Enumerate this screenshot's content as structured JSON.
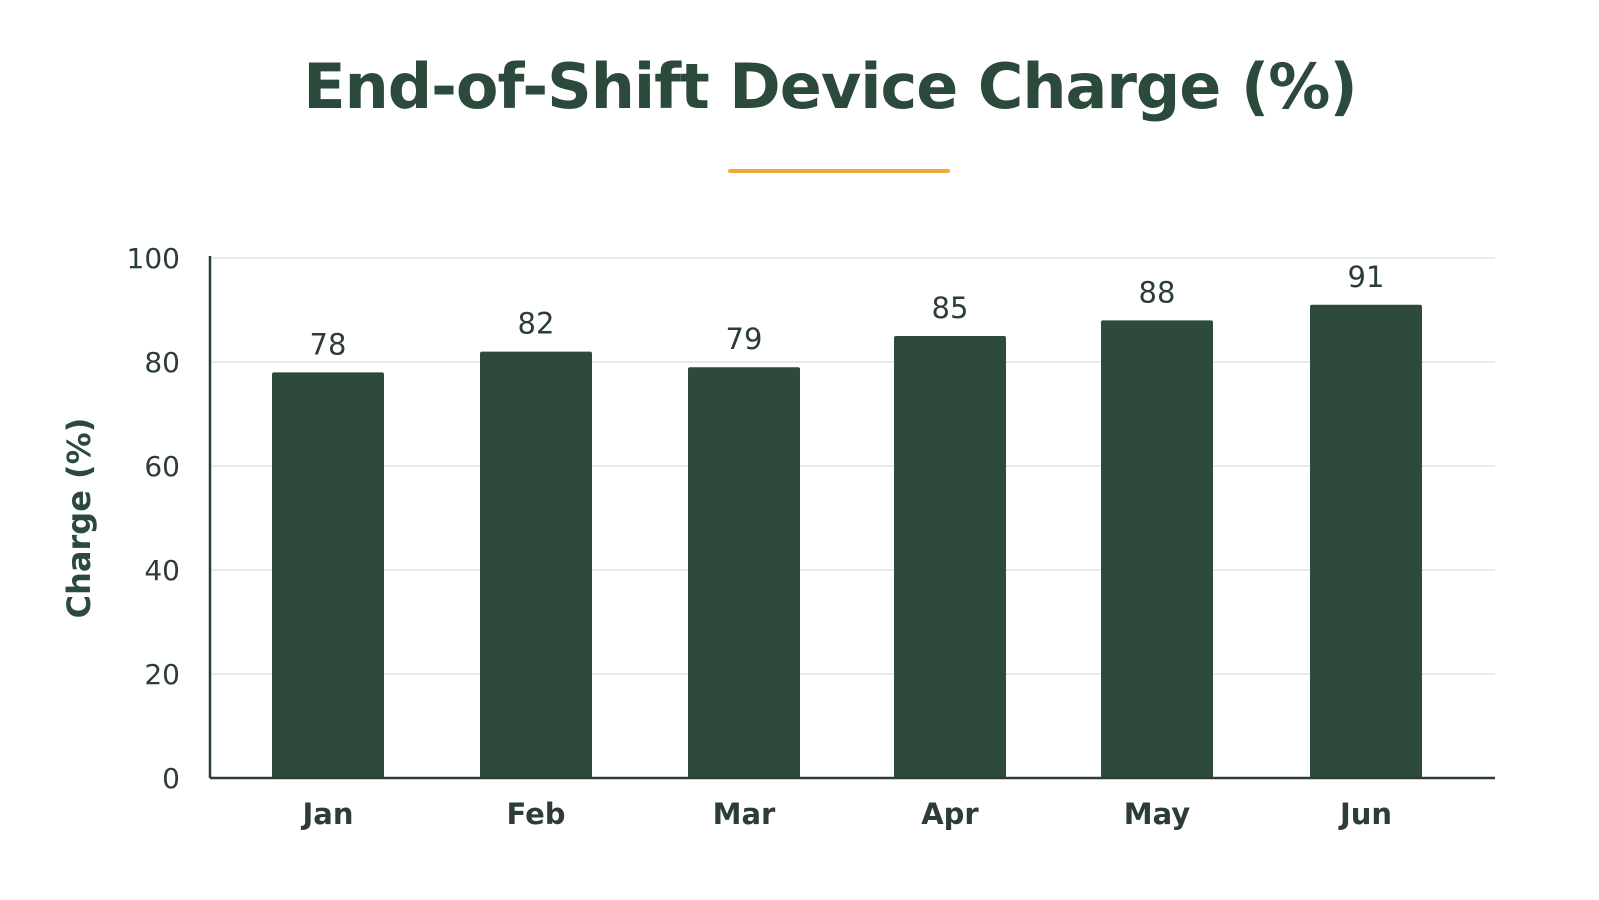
{
  "chart_data": {
    "type": "bar",
    "title": "End-of-Shift Device Charge (%)",
    "xlabel": "",
    "ylabel": "Charge (%)",
    "categories": [
      "Jan",
      "Feb",
      "Mar",
      "Apr",
      "May",
      "Jun"
    ],
    "values": [
      78,
      82,
      79,
      85,
      88,
      91
    ],
    "data_labels": [
      "78",
      "82",
      "79",
      "85",
      "88",
      "91"
    ],
    "ylim": [
      0,
      100
    ],
    "yticks": [
      0,
      20,
      40,
      60,
      80,
      100
    ],
    "grid": true,
    "legend": "none"
  },
  "colors": {
    "bar": "#2d4a3c",
    "title": "#2c4a3c",
    "accent_underline": "#f0aa3a",
    "axis": "#2c3e34",
    "grid": "#e3e6e4"
  }
}
